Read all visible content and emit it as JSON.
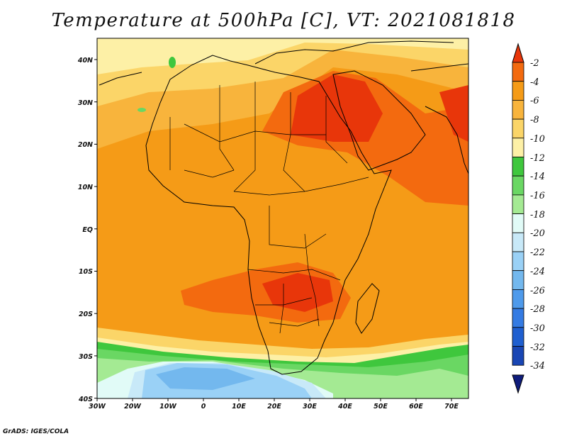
{
  "title": "Temperature at 500hPa [C], VT: 2021081818",
  "credit": "GrADS: IGES/COLA",
  "map": {
    "lon_range": [
      -30,
      75
    ],
    "lat_range": [
      -40,
      45
    ],
    "lon_ticks": [
      "30W",
      "20W",
      "10W",
      "0",
      "10E",
      "20E",
      "30E",
      "40E",
      "50E",
      "60E",
      "70E"
    ],
    "lat_ticks": [
      "40N",
      "30N",
      "20N",
      "10N",
      "EQ",
      "10S",
      "20S",
      "30S",
      "40S"
    ]
  },
  "colorbar": {
    "labels": [
      "-2",
      "-4",
      "-6",
      "-8",
      "-10",
      "-12",
      "-14",
      "-16",
      "-18",
      "-20",
      "-22",
      "-24",
      "-26",
      "-28",
      "-30",
      "-32",
      "-34"
    ],
    "colors": [
      "#e8360a",
      "#f36a0f",
      "#f59b17",
      "#f8b43c",
      "#fbd568",
      "#fdf0a6",
      "#3fc73d",
      "#6ad763",
      "#a4ea93",
      "#e1fbf7",
      "#c8e9f8",
      "#9ad1f6",
      "#73b8ee",
      "#4e9aeb",
      "#347be3",
      "#1f5fd0",
      "#1946b4",
      "#0f1c7b"
    ]
  }
}
